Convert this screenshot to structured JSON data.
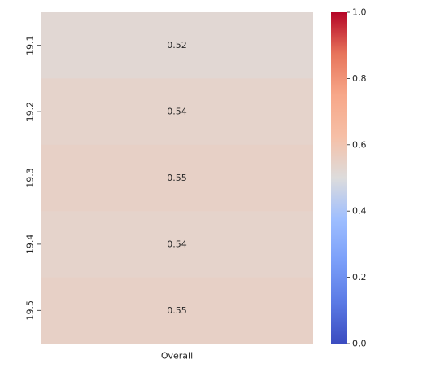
{
  "chart_data": {
    "type": "heatmap",
    "title": "",
    "xlabel": "",
    "ylabel": "",
    "x_categories": [
      "Overall"
    ],
    "y_categories": [
      "19.1",
      "19.2",
      "19.3",
      "19.4",
      "19.5"
    ],
    "values": [
      [
        0.52
      ],
      [
        0.54
      ],
      [
        0.55
      ],
      [
        0.54
      ],
      [
        0.55
      ]
    ],
    "value_labels": [
      "0.52",
      "0.54",
      "0.55",
      "0.54",
      "0.55"
    ],
    "colormap": "coolwarm",
    "vmin": 0.0,
    "vmax": 1.0,
    "colorbar": {
      "placement": "right",
      "ticks": [
        0.0,
        0.2,
        0.4,
        0.6,
        0.8,
        1.0
      ],
      "tick_labels": [
        "0.0",
        "0.2",
        "0.4",
        "0.6",
        "0.8",
        "1.0"
      ]
    },
    "grid": false
  }
}
